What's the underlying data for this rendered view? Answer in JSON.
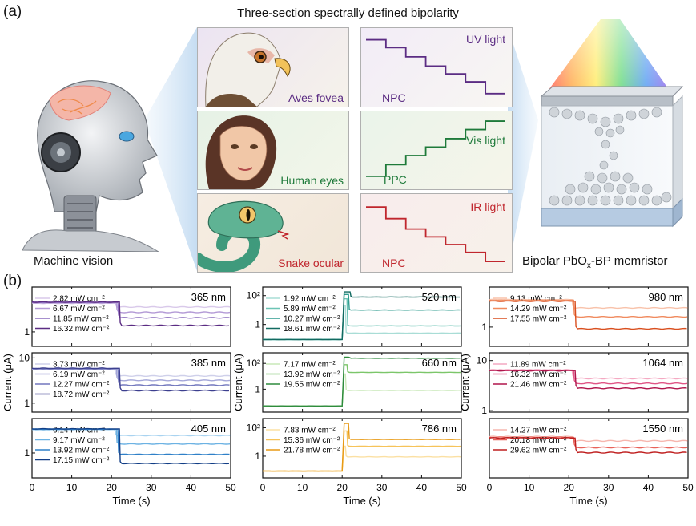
{
  "panel_a": {
    "label": "(a)",
    "title": "Three-section spectrally defined bipolarity",
    "left_caption": "Machine vision",
    "right_caption_pre": "Bipolar PbO",
    "right_caption_sub": "x",
    "right_caption_post": "-BP memristor",
    "animals": [
      {
        "label": "Aves fovea",
        "color": "#5b2c83"
      },
      {
        "label": "Human eyes",
        "color": "#1e7a3a"
      },
      {
        "label": "Snake ocular",
        "color": "#c0262d"
      }
    ],
    "responses": [
      {
        "light": "UV light",
        "type": "NPC",
        "color": "#5b2c83",
        "levels": [
          0.92,
          0.8,
          0.66,
          0.52,
          0.4,
          0.28,
          0.1
        ]
      },
      {
        "light": "Vis light",
        "type": "PPC",
        "color": "#1e7a3a",
        "levels": [
          0.1,
          0.28,
          0.42,
          0.55,
          0.68,
          0.82,
          0.95
        ]
      },
      {
        "light": "IR light",
        "type": "NPC",
        "color": "#c0262d",
        "levels": [
          0.9,
          0.72,
          0.56,
          0.44,
          0.32,
          0.2,
          0.06
        ]
      }
    ]
  },
  "panel_b": {
    "label": "(b)",
    "ylabel": "Current (μA)",
    "xlabel": "Time (s)",
    "x_ticks": [
      "0",
      "10",
      "20",
      "30",
      "40",
      "50"
    ]
  },
  "chart_data": [
    {
      "type": "line",
      "title": "365 nm",
      "xlim": [
        0,
        50
      ],
      "y_scale": "log",
      "y_ticks": [
        "1"
      ],
      "series": [
        {
          "name": "2.82 mW cm⁻²",
          "color": "#d9c9ea",
          "dark": 4.5,
          "peak": 4.5,
          "light": 3.7
        },
        {
          "name": "6.67 mW cm⁻²",
          "color": "#b39ad6",
          "dark": 4.6,
          "peak": 4.6,
          "light": 2.8
        },
        {
          "name": "11.85 mW cm⁻²",
          "color": "#8a6bbd",
          "dark": 4.7,
          "peak": 4.7,
          "light": 2.1
        },
        {
          "name": "16.32 mW cm⁻²",
          "color": "#5b2c83",
          "dark": 4.8,
          "peak": 4.8,
          "light": 1.4
        }
      ]
    },
    {
      "type": "line",
      "title": "385 nm",
      "xlim": [
        0,
        50
      ],
      "y_scale": "log",
      "y_ticks": [
        "10",
        "1"
      ],
      "series": [
        {
          "name": "3.73 mW cm⁻²",
          "color": "#cfd0ea",
          "dark": 5.6,
          "peak": 5.6,
          "light": 4.0
        },
        {
          "name": "6.19 mW cm⁻²",
          "color": "#a3a6d8",
          "dark": 5.7,
          "peak": 5.7,
          "light": 3.2
        },
        {
          "name": "12.27 mW cm⁻²",
          "color": "#7277bd",
          "dark": 5.8,
          "peak": 5.8,
          "light": 2.5
        },
        {
          "name": "18.72 mW cm⁻²",
          "color": "#3c3f8f",
          "dark": 5.9,
          "peak": 5.9,
          "light": 1.9
        }
      ]
    },
    {
      "type": "line",
      "title": "405 nm",
      "xlim": [
        0,
        50
      ],
      "y_scale": "log",
      "y_ticks": [
        "1"
      ],
      "series": [
        {
          "name": "6.14 mW cm⁻²",
          "color": "#a9d3f0",
          "dark": 6.0,
          "peak": 6.0,
          "light": 3.8
        },
        {
          "name": "9.17 mW cm⁻²",
          "color": "#6cb2e3",
          "dark": 6.1,
          "peak": 6.1,
          "light": 2.0
        },
        {
          "name": "13.92 mW cm⁻²",
          "color": "#2f80c8",
          "dark": 6.2,
          "peak": 6.2,
          "light": 0.9
        },
        {
          "name": "17.15 mW cm⁻²",
          "color": "#123e86",
          "dark": 6.3,
          "peak": 6.3,
          "light": 0.45
        }
      ]
    },
    {
      "type": "line",
      "title": "520 nm",
      "xlim": [
        0,
        50
      ],
      "y_scale": "log",
      "y_ticks": [
        "10²",
        "1"
      ],
      "series": [
        {
          "name": "1.92 mW cm⁻²",
          "color": "#a9ddd6",
          "dark": 0.09,
          "peak": 20,
          "light": 0.25
        },
        {
          "name": "5.89 mW cm⁻²",
          "color": "#6cc4b5",
          "dark": 0.09,
          "peak": 60,
          "light": 0.8
        },
        {
          "name": "10.27 mW cm⁻²",
          "color": "#2f9c8f",
          "dark": 0.09,
          "peak": 120,
          "light": 10
        },
        {
          "name": "18.61 mW cm⁻²",
          "color": "#126a61",
          "dark": 0.09,
          "peak": 180,
          "light": 80
        }
      ]
    },
    {
      "type": "line",
      "title": "660 nm",
      "xlim": [
        0,
        50
      ],
      "y_scale": "log",
      "y_ticks": [
        "10²",
        "1"
      ],
      "series": [
        {
          "name": "7.17 mW cm⁻²",
          "color": "#c9e8b8",
          "dark": 0.05,
          "peak": 15,
          "light": 0.8
        },
        {
          "name": "13.92 mW cm⁻²",
          "color": "#7cc66a",
          "dark": 0.05,
          "peak": 80,
          "light": 20
        },
        {
          "name": "19.55 mW cm⁻²",
          "color": "#2e8b3d",
          "dark": 0.05,
          "peak": 300,
          "light": 250
        }
      ]
    },
    {
      "type": "line",
      "title": "786 nm",
      "xlim": [
        0,
        50
      ],
      "y_scale": "log",
      "y_ticks": [
        "10²",
        "1"
      ],
      "series": [
        {
          "name": "7.83 mW cm⁻²",
          "color": "#fbe0a3",
          "dark": 0.09,
          "peak": 5,
          "light": 0.9
        },
        {
          "name": "15.36 mW cm⁻²",
          "color": "#f6c35a",
          "dark": 0.09,
          "peak": 60,
          "light": 5
        },
        {
          "name": "21.78 mW cm⁻²",
          "color": "#e89a15",
          "dark": 0.09,
          "peak": 200,
          "light": 15
        }
      ]
    },
    {
      "type": "line",
      "title": "980 nm",
      "xlim": [
        0,
        50
      ],
      "y_scale": "log",
      "y_ticks": [
        "1"
      ],
      "series": [
        {
          "name": "9.13 mW cm⁻²",
          "color": "#f8c2aa",
          "dark": 5.5,
          "peak": 5.5,
          "light": 3.3
        },
        {
          "name": "14.29 mW cm⁻²",
          "color": "#f08a5e",
          "dark": 5.3,
          "peak": 5.3,
          "light": 1.9
        },
        {
          "name": "17.55 mW cm⁻²",
          "color": "#d94f1f",
          "dark": 5.0,
          "peak": 5.0,
          "light": 0.9
        }
      ]
    },
    {
      "type": "line",
      "title": "1064 nm",
      "xlim": [
        0,
        50
      ],
      "y_scale": "log",
      "y_ticks": [
        "10",
        "1"
      ],
      "series": [
        {
          "name": "11.89 mW cm⁻²",
          "color": "#f4a9c2",
          "dark": 6.5,
          "peak": 6.5,
          "light": 4.4
        },
        {
          "name": "16.32 mW cm⁻²",
          "color": "#e05586",
          "dark": 6.4,
          "peak": 6.4,
          "light": 3.5
        },
        {
          "name": "21.46 mW cm⁻²",
          "color": "#b0154c",
          "dark": 6.3,
          "peak": 6.3,
          "light": 2.8
        }
      ]
    },
    {
      "type": "line",
      "title": "1550 nm",
      "xlim": [
        0,
        50
      ],
      "y_scale": "log",
      "y_ticks": [
        "1"
      ],
      "series": [
        {
          "name": "14.27 mW cm⁻²",
          "color": "#f6b6ae",
          "dark": 7.2,
          "peak": 7.2,
          "light": 6.0
        },
        {
          "name": "20.18 mW cm⁻²",
          "color": "#e8625a",
          "dark": 7.0,
          "peak": 7.0,
          "light": 4.5
        },
        {
          "name": "29.62 mW cm⁻²",
          "color": "#bf1e1e",
          "dark": 6.8,
          "peak": 6.8,
          "light": 3.6
        }
      ]
    }
  ]
}
